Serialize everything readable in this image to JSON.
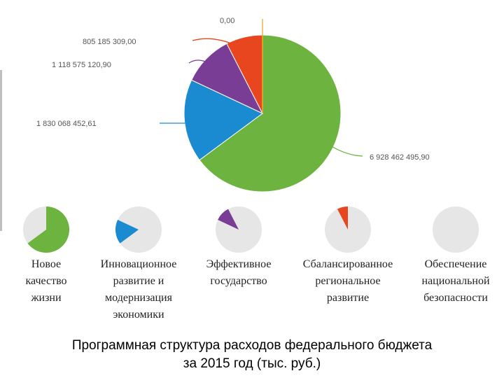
{
  "chart_data": {
    "type": "pie",
    "categories": [
      "Новое качество жизни",
      "Инновационное развитие и модернизация экономики",
      "Эффективное государство",
      "Сбалансированное региональное развитие",
      "Обеспечение национальной безопасности"
    ],
    "values": [
      6928462495.9,
      1830068452.61,
      1118575120.9,
      805185309.0,
      0.0
    ],
    "data_labels": [
      "6 928 462 495,90",
      "1 830 068 452,61",
      "1 118 575 120,90",
      "805 185 309,00",
      "0,00"
    ],
    "colors": [
      "#6db33f",
      "#1a8bd0",
      "#7a3d96",
      "#e8461e",
      "#f0a830"
    ],
    "mini_chart_background": "#e6e6e6",
    "captions": [
      [
        "Новое",
        "качество",
        "жизни"
      ],
      [
        "Инновационное",
        "развитие и",
        "модернизация",
        "экономики"
      ],
      [
        "Эффективное",
        "государство"
      ],
      [
        "Сбалансированное",
        "региональное",
        "развитие"
      ],
      [
        "Обеспечение",
        "национальной",
        "безопасности"
      ]
    ],
    "title": [
      "Программная структура расходов федерального бюджета",
      "за 2015 год (тыс. руб.)"
    ]
  }
}
